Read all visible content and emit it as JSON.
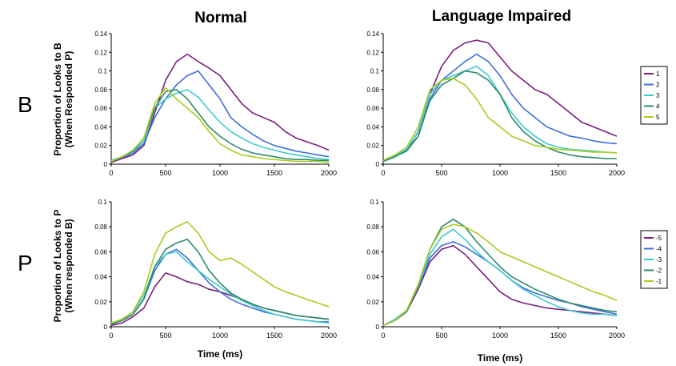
{
  "column_titles": [
    "Normal",
    "Language Impaired"
  ],
  "row_labels": [
    "B",
    "P"
  ],
  "ylabels": {
    "B": [
      "Proportion of Looks to B",
      "(When Responded P)"
    ],
    "P": [
      "Proportion of Looks to P",
      "(When responded B)"
    ]
  },
  "xlabel": "Time (ms)",
  "legends": {
    "B": [
      {
        "name": "1",
        "color": "#7B1E7A"
      },
      {
        "name": "2",
        "color": "#3F6FD8"
      },
      {
        "name": "3",
        "color": "#40C8D0"
      },
      {
        "name": "4",
        "color": "#2E8B6A"
      },
      {
        "name": "5",
        "color": "#A8CC20"
      }
    ],
    "P": [
      {
        "name": "-5",
        "color": "#7B1E7A"
      },
      {
        "name": "-4",
        "color": "#3F6FD8"
      },
      {
        "name": "-3",
        "color": "#40C8D0"
      },
      {
        "name": "-2",
        "color": "#2E8B6A"
      },
      {
        "name": "-1",
        "color": "#A8CC20"
      }
    ]
  },
  "chart_data": [
    {
      "type": "line",
      "title": "Normal",
      "row": "B",
      "xlabel": "",
      "ylabel": "Proportion of Looks to B (When Responded P)",
      "xlim": [
        0,
        2000
      ],
      "ylim": [
        0,
        0.14
      ],
      "xticks": [
        0,
        500,
        1000,
        1500,
        2000
      ],
      "yticks": [
        0,
        0.02,
        0.04,
        0.06,
        0.08,
        0.1,
        0.12,
        0.14
      ],
      "x": [
        0,
        100,
        200,
        300,
        400,
        500,
        600,
        700,
        800,
        900,
        1000,
        1100,
        1200,
        1300,
        1400,
        1500,
        1600,
        1700,
        1800,
        1900,
        2000
      ],
      "series": [
        {
          "name": "1",
          "color": "#7B1E7A",
          "values": [
            0.002,
            0.006,
            0.01,
            0.02,
            0.055,
            0.09,
            0.11,
            0.118,
            0.11,
            0.103,
            0.095,
            0.08,
            0.065,
            0.055,
            0.05,
            0.045,
            0.035,
            0.028,
            0.024,
            0.02,
            0.015
          ]
        },
        {
          "name": "2",
          "color": "#3F6FD8",
          "values": [
            0.003,
            0.007,
            0.012,
            0.022,
            0.05,
            0.07,
            0.085,
            0.095,
            0.1,
            0.085,
            0.07,
            0.05,
            0.04,
            0.032,
            0.025,
            0.02,
            0.017,
            0.014,
            0.012,
            0.01,
            0.008
          ]
        },
        {
          "name": "3",
          "color": "#40C8D0",
          "values": [
            0.004,
            0.008,
            0.013,
            0.025,
            0.06,
            0.07,
            0.076,
            0.08,
            0.072,
            0.058,
            0.045,
            0.035,
            0.028,
            0.022,
            0.018,
            0.015,
            0.012,
            0.01,
            0.008,
            0.006,
            0.005
          ]
        },
        {
          "name": "4",
          "color": "#2E8B6A",
          "values": [
            0.003,
            0.008,
            0.014,
            0.028,
            0.06,
            0.078,
            0.08,
            0.07,
            0.055,
            0.04,
            0.03,
            0.022,
            0.016,
            0.012,
            0.01,
            0.008,
            0.006,
            0.005,
            0.005,
            0.004,
            0.004
          ]
        },
        {
          "name": "5",
          "color": "#A8CC20",
          "values": [
            0.003,
            0.008,
            0.015,
            0.028,
            0.065,
            0.082,
            0.07,
            0.06,
            0.05,
            0.035,
            0.022,
            0.015,
            0.01,
            0.008,
            0.006,
            0.005,
            0.004,
            0.003,
            0.003,
            0.003,
            0.002
          ]
        }
      ]
    },
    {
      "type": "line",
      "title": "Language Impaired",
      "row": "B",
      "xlabel": "",
      "ylabel": "",
      "xlim": [
        0,
        2000
      ],
      "ylim": [
        0,
        0.14
      ],
      "xticks": [
        0,
        500,
        1000,
        1500,
        2000
      ],
      "yticks": [
        0,
        0.02,
        0.04,
        0.06,
        0.08,
        0.1,
        0.12,
        0.14
      ],
      "x": [
        0,
        100,
        200,
        300,
        400,
        500,
        600,
        700,
        800,
        900,
        1000,
        1100,
        1200,
        1300,
        1400,
        1500,
        1600,
        1700,
        1800,
        1900,
        2000
      ],
      "series": [
        {
          "name": "1",
          "color": "#7B1E7A",
          "values": [
            0.003,
            0.008,
            0.015,
            0.035,
            0.075,
            0.105,
            0.122,
            0.13,
            0.133,
            0.13,
            0.115,
            0.1,
            0.09,
            0.08,
            0.075,
            0.065,
            0.055,
            0.045,
            0.04,
            0.035,
            0.03
          ]
        },
        {
          "name": "2",
          "color": "#3F6FD8",
          "values": [
            0.003,
            0.008,
            0.015,
            0.03,
            0.07,
            0.09,
            0.1,
            0.11,
            0.118,
            0.11,
            0.095,
            0.075,
            0.06,
            0.05,
            0.04,
            0.035,
            0.03,
            0.028,
            0.025,
            0.023,
            0.022
          ]
        },
        {
          "name": "3",
          "color": "#40C8D0",
          "values": [
            0.004,
            0.009,
            0.016,
            0.035,
            0.075,
            0.09,
            0.095,
            0.1,
            0.105,
            0.095,
            0.075,
            0.055,
            0.04,
            0.03,
            0.022,
            0.018,
            0.016,
            0.015,
            0.014,
            0.013,
            0.012
          ]
        },
        {
          "name": "4",
          "color": "#2E8B6A",
          "values": [
            0.003,
            0.008,
            0.014,
            0.03,
            0.068,
            0.085,
            0.092,
            0.1,
            0.098,
            0.09,
            0.075,
            0.05,
            0.035,
            0.025,
            0.018,
            0.013,
            0.01,
            0.008,
            0.007,
            0.006,
            0.006
          ]
        },
        {
          "name": "5",
          "color": "#A8CC20",
          "values": [
            0.004,
            0.01,
            0.018,
            0.04,
            0.08,
            0.09,
            0.092,
            0.085,
            0.07,
            0.05,
            0.04,
            0.03,
            0.025,
            0.02,
            0.018,
            0.016,
            0.015,
            0.014,
            0.013,
            0.013,
            0.012
          ]
        }
      ]
    },
    {
      "type": "line",
      "title": "",
      "row": "P",
      "xlabel": "Time (ms)",
      "ylabel": "Proportion of Looks to P (When responded B)",
      "xlim": [
        0,
        2000
      ],
      "ylim": [
        0,
        0.1
      ],
      "xticks": [
        0,
        500,
        1000,
        1500,
        2000
      ],
      "yticks": [
        0,
        0.02,
        0.04,
        0.06,
        0.08,
        0.1
      ],
      "x": [
        0,
        100,
        200,
        300,
        400,
        500,
        600,
        700,
        800,
        900,
        1000,
        1100,
        1200,
        1300,
        1400,
        1500,
        1600,
        1700,
        1800,
        1900,
        2000
      ],
      "series": [
        {
          "name": "-5",
          "color": "#7B1E7A",
          "values": [
            0.001,
            0.003,
            0.008,
            0.015,
            0.032,
            0.043,
            0.04,
            0.036,
            0.034,
            0.03,
            0.028,
            0.025,
            0.022,
            0.018,
            0.015,
            0.013,
            0.011,
            0.009,
            0.008,
            0.007,
            0.006
          ]
        },
        {
          "name": "-4",
          "color": "#3F6FD8",
          "values": [
            0.002,
            0.005,
            0.01,
            0.022,
            0.045,
            0.058,
            0.062,
            0.055,
            0.045,
            0.035,
            0.028,
            0.022,
            0.018,
            0.015,
            0.012,
            0.01,
            0.008,
            0.006,
            0.005,
            0.004,
            0.004
          ]
        },
        {
          "name": "-3",
          "color": "#40C8D0",
          "values": [
            0.003,
            0.006,
            0.012,
            0.025,
            0.048,
            0.058,
            0.06,
            0.052,
            0.045,
            0.038,
            0.032,
            0.026,
            0.021,
            0.017,
            0.013,
            0.01,
            0.008,
            0.006,
            0.005,
            0.004,
            0.003
          ]
        },
        {
          "name": "-2",
          "color": "#2E8B6A",
          "values": [
            0.002,
            0.005,
            0.01,
            0.022,
            0.048,
            0.062,
            0.067,
            0.07,
            0.06,
            0.045,
            0.035,
            0.027,
            0.022,
            0.018,
            0.015,
            0.013,
            0.011,
            0.009,
            0.008,
            0.007,
            0.006
          ]
        },
        {
          "name": "-1",
          "color": "#A8CC20",
          "values": [
            0.003,
            0.006,
            0.012,
            0.028,
            0.058,
            0.075,
            0.08,
            0.084,
            0.075,
            0.06,
            0.053,
            0.055,
            0.05,
            0.044,
            0.038,
            0.032,
            0.028,
            0.025,
            0.022,
            0.019,
            0.016
          ]
        }
      ]
    },
    {
      "type": "line",
      "title": "",
      "row": "P",
      "xlabel": "Time (ms)",
      "ylabel": "",
      "xlim": [
        0,
        2000
      ],
      "ylim": [
        0,
        0.1
      ],
      "xticks": [
        0,
        500,
        1000,
        1500,
        2000
      ],
      "yticks": [
        0,
        0.02,
        0.04,
        0.06,
        0.08,
        0.1
      ],
      "x": [
        0,
        100,
        200,
        300,
        400,
        500,
        600,
        700,
        800,
        900,
        1000,
        1100,
        1200,
        1300,
        1400,
        1500,
        1600,
        1700,
        1800,
        1900,
        2000
      ],
      "series": [
        {
          "name": "-5",
          "color": "#7B1E7A",
          "values": [
            0.001,
            0.005,
            0.012,
            0.03,
            0.052,
            0.062,
            0.065,
            0.058,
            0.048,
            0.038,
            0.028,
            0.022,
            0.019,
            0.017,
            0.015,
            0.014,
            0.013,
            0.012,
            0.011,
            0.01,
            0.009
          ]
        },
        {
          "name": "-4",
          "color": "#3F6FD8",
          "values": [
            0.001,
            0.005,
            0.012,
            0.032,
            0.055,
            0.065,
            0.068,
            0.064,
            0.058,
            0.052,
            0.045,
            0.037,
            0.031,
            0.027,
            0.024,
            0.021,
            0.019,
            0.016,
            0.014,
            0.012,
            0.01
          ]
        },
        {
          "name": "-3",
          "color": "#40C8D0",
          "values": [
            0.001,
            0.006,
            0.013,
            0.032,
            0.058,
            0.072,
            0.078,
            0.07,
            0.06,
            0.052,
            0.045,
            0.037,
            0.03,
            0.025,
            0.02,
            0.016,
            0.013,
            0.011,
            0.01,
            0.01,
            0.009
          ]
        },
        {
          "name": "-2",
          "color": "#2E8B6A",
          "values": [
            0.001,
            0.005,
            0.012,
            0.033,
            0.062,
            0.08,
            0.086,
            0.08,
            0.068,
            0.058,
            0.048,
            0.04,
            0.035,
            0.03,
            0.026,
            0.022,
            0.019,
            0.017,
            0.015,
            0.013,
            0.012
          ]
        },
        {
          "name": "-1",
          "color": "#A8CC20",
          "values": [
            0.001,
            0.005,
            0.013,
            0.034,
            0.062,
            0.078,
            0.082,
            0.08,
            0.075,
            0.068,
            0.06,
            0.056,
            0.052,
            0.048,
            0.044,
            0.04,
            0.036,
            0.032,
            0.028,
            0.025,
            0.021
          ]
        }
      ]
    }
  ]
}
